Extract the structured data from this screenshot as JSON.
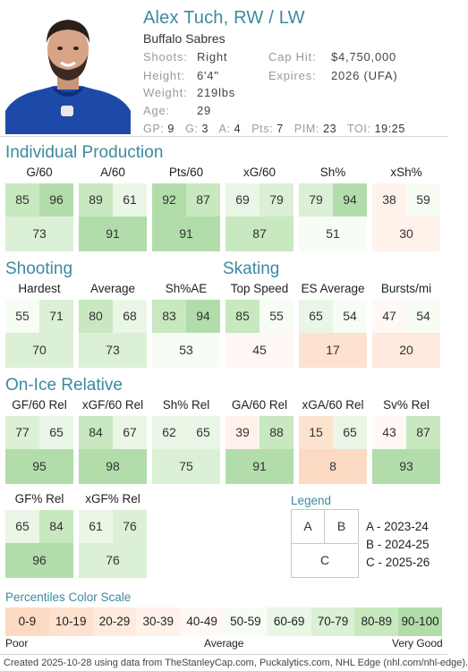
{
  "player": {
    "name": "Alex Tuch, RW / LW",
    "team": "Buffalo Sabres",
    "bio_left": [
      {
        "label": "Shoots:",
        "value": "Right"
      },
      {
        "label": "Height:",
        "value": "6'4\""
      },
      {
        "label": "Weight:",
        "value": "219lbs"
      },
      {
        "label": "Age:",
        "value": "29"
      }
    ],
    "bio_right": [
      {
        "label": "Cap Hit:",
        "value": "$4,750,000"
      },
      {
        "label": "Expires:",
        "value": "2026 (UFA)"
      }
    ],
    "stats": [
      {
        "label": "GP:",
        "value": "9"
      },
      {
        "label": "G:",
        "value": "3"
      },
      {
        "label": "A:",
        "value": "4"
      },
      {
        "label": "Pts:",
        "value": "7"
      },
      {
        "label": "PIM:",
        "value": "23"
      },
      {
        "label": "TOI:",
        "value": "19:25"
      }
    ]
  },
  "sections": [
    {
      "title": "Individual Production",
      "cards": [
        {
          "label": "G/60",
          "a": 85,
          "b": 96,
          "c": 73
        },
        {
          "label": "A/60",
          "a": 89,
          "b": 61,
          "c": 91
        },
        {
          "label": "Pts/60",
          "a": 92,
          "b": 87,
          "c": 91
        },
        {
          "label": "xG/60",
          "a": 69,
          "b": 79,
          "c": 87
        },
        {
          "label": "Sh%",
          "a": 79,
          "b": 94,
          "c": 51
        },
        {
          "label": "xSh%",
          "a": 38,
          "b": 59,
          "c": 30
        }
      ]
    },
    {
      "title": "Shooting",
      "cards": [
        {
          "label": "Hardest",
          "a": 55,
          "b": 71,
          "c": 70
        },
        {
          "label": "Average",
          "a": 80,
          "b": 68,
          "c": 73
        },
        {
          "label": "Sh%AE",
          "a": 83,
          "b": 94,
          "c": 53
        }
      ]
    },
    {
      "title": "Skating",
      "cards": [
        {
          "label": "Top Speed",
          "a": 85,
          "b": 55,
          "c": 45
        },
        {
          "label": "ES Average",
          "a": 65,
          "b": 54,
          "c": 17
        },
        {
          "label": "Bursts/mi",
          "a": 47,
          "b": 54,
          "c": 20
        }
      ]
    },
    {
      "title": "On-Ice Relative",
      "cards": [
        {
          "label": "GF/60 Rel",
          "a": 77,
          "b": 65,
          "c": 95
        },
        {
          "label": "xGF/60 Rel",
          "a": 84,
          "b": 67,
          "c": 98
        },
        {
          "label": "Sh% Rel",
          "a": 62,
          "b": 65,
          "c": 75
        },
        {
          "label": "GA/60 Rel",
          "a": 39,
          "b": 88,
          "c": 91
        },
        {
          "label": "xGA/60 Rel",
          "a": 15,
          "b": 65,
          "c": 8
        },
        {
          "label": "Sv% Rel",
          "a": 43,
          "b": 87,
          "c": 93
        },
        {
          "label": "GF% Rel",
          "a": 65,
          "b": 84,
          "c": 96
        },
        {
          "label": "xGF% Rel",
          "a": 61,
          "b": 76,
          "c": 76
        }
      ]
    }
  ],
  "legend": {
    "title": "Legend",
    "box_a": "A",
    "box_b": "B",
    "box_c": "C",
    "entries": [
      "A - 2023-24",
      "B - 2024-25",
      "C - 2025-26"
    ]
  },
  "scale": {
    "title": "Percentiles Color Scale",
    "bins": [
      {
        "label": "0-9",
        "color": "#fcd9c3"
      },
      {
        "label": "10-19",
        "color": "#fde2d0"
      },
      {
        "label": "20-29",
        "color": "#feeade"
      },
      {
        "label": "30-39",
        "color": "#fff2ea"
      },
      {
        "label": "40-49",
        "color": "#fff8f4"
      },
      {
        "label": "50-59",
        "color": "#f7fcf5"
      },
      {
        "label": "60-69",
        "color": "#eaf6e6"
      },
      {
        "label": "70-79",
        "color": "#dbf0d6"
      },
      {
        "label": "80-89",
        "color": "#c8e8c0"
      },
      {
        "label": "90-100",
        "color": "#b2ddab"
      }
    ],
    "low": "Poor",
    "mid": "Average",
    "high": "Very Good"
  },
  "footer": "Created 2025-10-28 using data from TheStanleyCap.com, Puckalytics.com, NHL Edge (nhl.com/nhl-edge)."
}
